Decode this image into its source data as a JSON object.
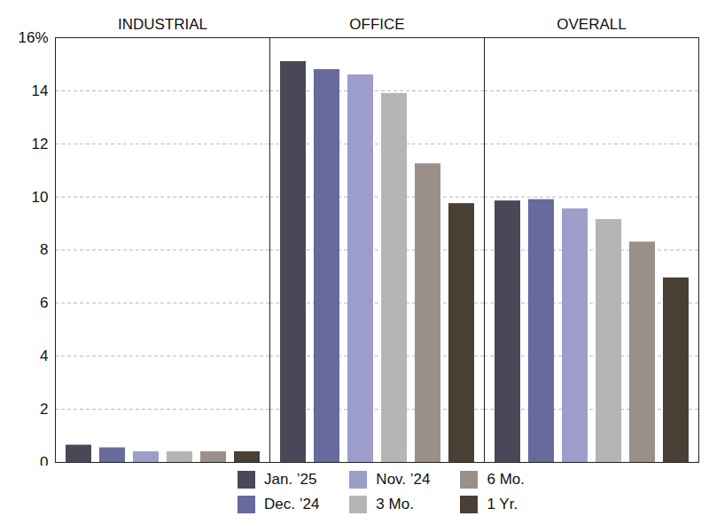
{
  "chart_data": {
    "type": "bar",
    "categories": [
      "INDUSTRIAL",
      "OFFICE",
      "OVERALL"
    ],
    "series": [
      {
        "name": "Jan. ’25",
        "color": "#4a4858",
        "values": [
          0.65,
          15.1,
          9.85
        ]
      },
      {
        "name": "Dec. ’24",
        "color": "#676a9c",
        "values": [
          0.55,
          14.8,
          9.9
        ]
      },
      {
        "name": "Nov. ’24",
        "color": "#9d9dcc",
        "values": [
          0.4,
          14.6,
          9.55
        ]
      },
      {
        "name": "3 Mo.",
        "color": "#b3b6b3",
        "values": [
          0.4,
          13.9,
          9.15
        ]
      },
      {
        "name": "6 Mo.",
        "color": "#9a9089",
        "values": [
          0.4,
          11.25,
          8.3
        ]
      },
      {
        "name": "1 Yr.",
        "color": "#4a3f35",
        "values": [
          0.4,
          9.75,
          6.95
        ]
      }
    ],
    "ylim": [
      0,
      16
    ],
    "yticks": [
      0,
      2,
      4,
      6,
      8,
      10,
      12,
      14,
      {
        "value": 16,
        "label": "16%"
      }
    ],
    "grid": true,
    "legend": "bottom"
  }
}
